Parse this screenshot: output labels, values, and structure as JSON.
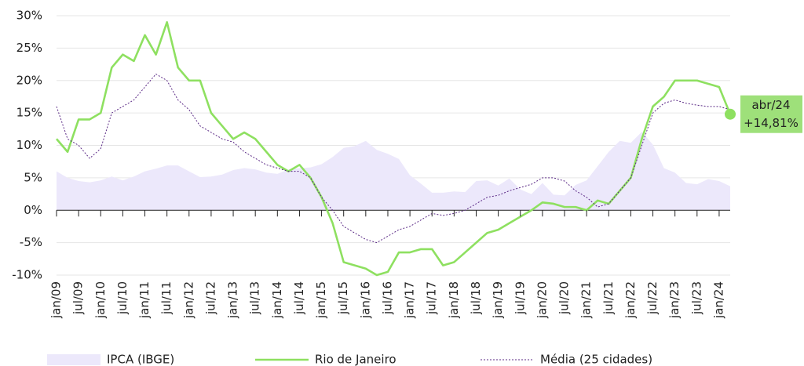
{
  "chart_data": {
    "type": "line",
    "categories": [
      "jan/09",
      null,
      "jul/09",
      null,
      "jan/10",
      null,
      "jul/10",
      null,
      "jan/11",
      null,
      "jul/11",
      null,
      "jan/12",
      null,
      "jul/12",
      null,
      "jan/13",
      null,
      "jul/13",
      null,
      "jan/14",
      null,
      "jul/14",
      null,
      "jan/15",
      null,
      "jul/15",
      null,
      "jan/16",
      null,
      "jul/16",
      null,
      "jan/17",
      null,
      "jul/17",
      null,
      "jan/18",
      null,
      "jul/18",
      null,
      "jan/19",
      null,
      "jul/19",
      null,
      "jan/20",
      null,
      "jul/20",
      null,
      "jan/21",
      null,
      "jul/21",
      null,
      "jan/22",
      null,
      "jul/22",
      null,
      "jan/23",
      null,
      "jul/23",
      null,
      "jan/24",
      null
    ],
    "series": [
      {
        "name": "IPCA (IBGE)",
        "kind": "area",
        "color": "#ece8fb",
        "values": [
          6,
          5,
          4.5,
          4.3,
          4.6,
          5.2,
          4.6,
          5.2,
          6,
          6.4,
          6.9,
          6.9,
          6,
          5.1,
          5.2,
          5.5,
          6.2,
          6.5,
          6.3,
          5.8,
          5.6,
          6.3,
          6.5,
          6.6,
          7.1,
          8.2,
          9.6,
          9.9,
          10.7,
          9.3,
          8.7,
          7.9,
          5.4,
          4.1,
          2.7,
          2.7,
          2.9,
          2.8,
          4.5,
          4.6,
          3.8,
          4.9,
          3.2,
          2.5,
          4.2,
          2.4,
          2.3,
          3.9,
          4.6,
          6.8,
          9,
          10.7,
          10.4,
          12.1,
          10.1,
          6.5,
          5.8,
          4.2,
          4,
          4.8,
          4.5,
          3.7
        ]
      },
      {
        "name": "Rio de Janeiro",
        "kind": "line",
        "color": "#8ee060",
        "values": [
          11,
          9,
          14,
          14,
          15,
          22,
          24,
          23,
          27,
          24,
          29,
          22,
          20,
          20,
          15,
          13,
          11,
          12,
          11,
          9,
          7,
          6,
          7,
          5,
          2,
          -2,
          -8,
          -8.5,
          -9,
          -10,
          -9.5,
          -6.5,
          -6.5,
          -6,
          -6,
          -8.5,
          -8,
          -6.5,
          -5,
          -3.5,
          -3,
          -2,
          -1,
          0,
          1.2,
          1,
          0.5,
          0.5,
          0,
          1.5,
          1,
          3,
          5,
          11,
          16,
          17.5,
          20,
          20,
          20,
          19.5,
          19,
          14.81
        ]
      },
      {
        "name": "Média (25 cidades)",
        "kind": "dotted",
        "color": "#5b2a86",
        "values": [
          16,
          11,
          10,
          8,
          9.5,
          15,
          16,
          17,
          19,
          21,
          20,
          17,
          15.5,
          13,
          12,
          11,
          10.5,
          9,
          8,
          7,
          6.5,
          6,
          6,
          5,
          2,
          0,
          -2.5,
          -3.5,
          -4.5,
          -5,
          -4,
          -3,
          -2.5,
          -1.5,
          -0.5,
          -0.8,
          -0.5,
          0,
          1,
          2,
          2.3,
          3,
          3.5,
          4,
          5,
          5,
          4.5,
          3,
          2,
          0.5,
          1,
          3,
          5,
          10,
          15,
          16.5,
          17,
          16.5,
          16.2,
          16,
          16,
          15.5
        ]
      }
    ],
    "ylim": [
      -10,
      30
    ],
    "yticks": [
      {
        "value": -10,
        "label": "-10%"
      },
      {
        "value": -5,
        "label": "-5%"
      },
      {
        "value": 0,
        "label": "0%"
      },
      {
        "value": 5,
        "label": "5%"
      },
      {
        "value": 10,
        "label": "10%"
      },
      {
        "value": 15,
        "label": "15%"
      },
      {
        "value": 20,
        "label": "20%"
      },
      {
        "value": 25,
        "label": "25%"
      },
      {
        "value": 30,
        "label": "30%"
      }
    ],
    "grid": true,
    "annotation": [
      "abr/24",
      "+14,81%"
    ],
    "annotation_color": "#9ee07a"
  }
}
